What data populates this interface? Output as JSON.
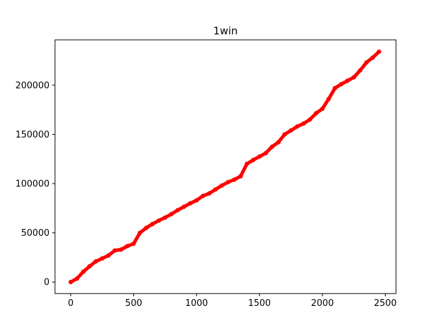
{
  "chart_data": {
    "type": "scatter",
    "title": "1win",
    "xlabel": "",
    "ylabel": "",
    "xlim": [
      -125,
      2585
    ],
    "ylim": [
      -11700,
      246000
    ],
    "xticks": [
      0,
      500,
      1000,
      1500,
      2000,
      2500
    ],
    "yticks": [
      0,
      50000,
      100000,
      150000,
      200000
    ],
    "xtick_labels": [
      "0",
      "500",
      "1000",
      "1500",
      "2000",
      "2500"
    ],
    "ytick_labels": [
      "0",
      "50000",
      "100000",
      "150000",
      "200000"
    ],
    "grid": false,
    "marker_color": "#ff0000",
    "series": [
      {
        "x": [
          0,
          50,
          100,
          150,
          200,
          250,
          300,
          350,
          400,
          450,
          500,
          550,
          600,
          650,
          700,
          750,
          800,
          850,
          900,
          950,
          1000,
          1050,
          1100,
          1150,
          1200,
          1250,
          1300,
          1350,
          1400,
          1450,
          1500,
          1550,
          1600,
          1650,
          1700,
          1750,
          1800,
          1850,
          1900,
          1950,
          2000,
          2050,
          2100,
          2150,
          2200,
          2250,
          2300,
          2350,
          2400,
          2450
        ],
        "y": [
          0,
          3500,
          10500,
          16000,
          21000,
          24000,
          27000,
          32000,
          33000,
          36500,
          39000,
          50000,
          55000,
          59000,
          62500,
          65500,
          69000,
          73000,
          76500,
          80000,
          83000,
          87500,
          90000,
          94000,
          98000,
          101500,
          104000,
          107500,
          120000,
          124000,
          127500,
          131000,
          137500,
          142000,
          150000,
          154000,
          158000,
          161000,
          165000,
          171500,
          176000,
          186000,
          197000,
          201000,
          204500,
          208000,
          215000,
          223000,
          228000,
          234000
        ]
      }
    ]
  }
}
